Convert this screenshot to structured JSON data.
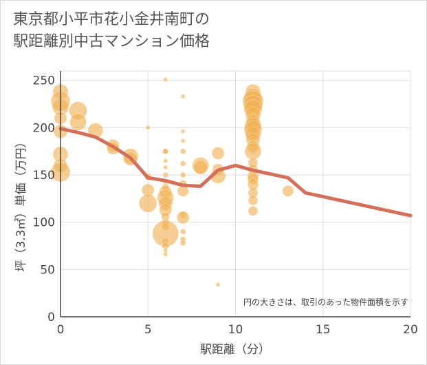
{
  "title_line1": "東京都小平市花小金井南町の",
  "title_line2": "駅距離別中古マンション価格",
  "chart_data": {
    "type": "scatter",
    "title": "東京都小平市花小金井南町の駅距離別中古マンション価格",
    "xlabel": "駅距離（分）",
    "ylabel": "坪（3.3㎡）単価（万円）",
    "xlim": [
      0,
      20
    ],
    "ylim": [
      0,
      260
    ],
    "xticks": [
      "0",
      "5",
      "10",
      "15",
      "20"
    ],
    "yticks": [
      "0",
      "50",
      "100",
      "150",
      "200",
      "250"
    ],
    "grid": true,
    "note": "円の大きさは、取引のあった物件面積を示す",
    "colors": {
      "bubble": "#f0b050",
      "line": "#d4705a",
      "grid": "#dddddd",
      "axis": "#444444"
    },
    "bubbles": [
      {
        "x": 0,
        "y": 238,
        "s": 11
      },
      {
        "x": 0,
        "y": 228,
        "s": 14
      },
      {
        "x": 0,
        "y": 222,
        "s": 12
      },
      {
        "x": 0,
        "y": 210,
        "s": 9
      },
      {
        "x": 0,
        "y": 196,
        "s": 10
      },
      {
        "x": 0,
        "y": 172,
        "s": 11
      },
      {
        "x": 0,
        "y": 160,
        "s": 10
      },
      {
        "x": 0,
        "y": 153,
        "s": 14
      },
      {
        "x": 1,
        "y": 218,
        "s": 13
      },
      {
        "x": 1,
        "y": 206,
        "s": 12
      },
      {
        "x": 2,
        "y": 197,
        "s": 11
      },
      {
        "x": 3,
        "y": 181,
        "s": 9
      },
      {
        "x": 3,
        "y": 178,
        "s": 9
      },
      {
        "x": 4,
        "y": 170,
        "s": 11
      },
      {
        "x": 4,
        "y": 167,
        "s": 10
      },
      {
        "x": 5,
        "y": 200,
        "s": 3
      },
      {
        "x": 5,
        "y": 148,
        "s": 5
      },
      {
        "x": 5,
        "y": 134,
        "s": 9
      },
      {
        "x": 5,
        "y": 120,
        "s": 13
      },
      {
        "x": 6,
        "y": 251,
        "s": 3
      },
      {
        "x": 6,
        "y": 175,
        "s": 4
      },
      {
        "x": 6,
        "y": 175,
        "s": 4
      },
      {
        "x": 6,
        "y": 165,
        "s": 3
      },
      {
        "x": 6,
        "y": 158,
        "s": 3
      },
      {
        "x": 6,
        "y": 150,
        "s": 4
      },
      {
        "x": 6,
        "y": 143,
        "s": 4
      },
      {
        "x": 6,
        "y": 137,
        "s": 5
      },
      {
        "x": 6,
        "y": 132,
        "s": 9
      },
      {
        "x": 6,
        "y": 126,
        "s": 12
      },
      {
        "x": 6,
        "y": 120,
        "s": 10
      },
      {
        "x": 6,
        "y": 113,
        "s": 9
      },
      {
        "x": 6,
        "y": 106,
        "s": 6
      },
      {
        "x": 6,
        "y": 100,
        "s": 5
      },
      {
        "x": 6,
        "y": 95,
        "s": 5
      },
      {
        "x": 6,
        "y": 88,
        "s": 19
      },
      {
        "x": 6,
        "y": 80,
        "s": 5
      },
      {
        "x": 6,
        "y": 75,
        "s": 5
      },
      {
        "x": 6,
        "y": 70,
        "s": 3
      },
      {
        "x": 6,
        "y": 66,
        "s": 3
      },
      {
        "x": 7,
        "y": 233,
        "s": 3
      },
      {
        "x": 7,
        "y": 196,
        "s": 3
      },
      {
        "x": 7,
        "y": 186,
        "s": 3
      },
      {
        "x": 7,
        "y": 175,
        "s": 4
      },
      {
        "x": 7,
        "y": 162,
        "s": 4
      },
      {
        "x": 7,
        "y": 150,
        "s": 4
      },
      {
        "x": 7,
        "y": 141,
        "s": 5
      },
      {
        "x": 7,
        "y": 133,
        "s": 8
      },
      {
        "x": 7,
        "y": 108,
        "s": 5
      },
      {
        "x": 7,
        "y": 105,
        "s": 9
      },
      {
        "x": 7,
        "y": 90,
        "s": 4
      },
      {
        "x": 7,
        "y": 82,
        "s": 4
      },
      {
        "x": 7,
        "y": 78,
        "s": 4
      },
      {
        "x": 8,
        "y": 160,
        "s": 12
      },
      {
        "x": 8,
        "y": 158,
        "s": 10
      },
      {
        "x": 9,
        "y": 173,
        "s": 9
      },
      {
        "x": 9,
        "y": 156,
        "s": 8
      },
      {
        "x": 9,
        "y": 149,
        "s": 11
      },
      {
        "x": 9,
        "y": 34,
        "s": 3
      },
      {
        "x": 11,
        "y": 238,
        "s": 11
      },
      {
        "x": 11,
        "y": 232,
        "s": 13
      },
      {
        "x": 11,
        "y": 228,
        "s": 15
      },
      {
        "x": 11,
        "y": 224,
        "s": 14
      },
      {
        "x": 11,
        "y": 220,
        "s": 13
      },
      {
        "x": 11,
        "y": 214,
        "s": 11
      },
      {
        "x": 11,
        "y": 207,
        "s": 10
      },
      {
        "x": 11,
        "y": 202,
        "s": 12
      },
      {
        "x": 11,
        "y": 198,
        "s": 13
      },
      {
        "x": 11,
        "y": 193,
        "s": 11
      },
      {
        "x": 11,
        "y": 187,
        "s": 10
      },
      {
        "x": 11,
        "y": 180,
        "s": 9
      },
      {
        "x": 11,
        "y": 175,
        "s": 12
      },
      {
        "x": 11,
        "y": 163,
        "s": 7
      },
      {
        "x": 11,
        "y": 156,
        "s": 7
      },
      {
        "x": 11,
        "y": 149,
        "s": 8
      },
      {
        "x": 11,
        "y": 146,
        "s": 8
      },
      {
        "x": 11,
        "y": 140,
        "s": 8
      },
      {
        "x": 11,
        "y": 131,
        "s": 7
      },
      {
        "x": 11,
        "y": 123,
        "s": 7
      },
      {
        "x": 11,
        "y": 112,
        "s": 7
      },
      {
        "x": 13,
        "y": 133,
        "s": 8
      }
    ],
    "series": [
      {
        "x": [
          0,
          1,
          2,
          3,
          4,
          5,
          6,
          7,
          8,
          9,
          10,
          11,
          12,
          13,
          14,
          15,
          16,
          17,
          18,
          19,
          20
        ],
        "y": [
          199,
          195,
          190,
          180,
          168,
          147,
          144,
          139,
          138,
          155,
          160,
          155,
          151,
          147,
          131,
          127,
          123,
          119,
          115,
          111,
          107
        ]
      }
    ]
  }
}
